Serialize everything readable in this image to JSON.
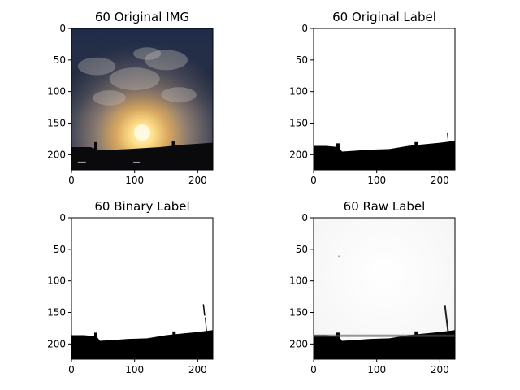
{
  "chart_data": [
    {
      "type": "image",
      "title": "60 Original IMG",
      "content": "photo",
      "xlim": [
        0,
        224
      ],
      "ylim": [
        224,
        0
      ],
      "xticks": [
        0,
        100,
        200
      ],
      "yticks": [
        0,
        50,
        100,
        150,
        200
      ]
    },
    {
      "type": "image",
      "title": "60 Original Label",
      "content": "mask",
      "xlim": [
        0,
        224
      ],
      "ylim": [
        224,
        0
      ],
      "xticks": [
        0,
        100,
        200
      ],
      "yticks": [
        0,
        50,
        100,
        150,
        200
      ],
      "skyline_y": [
        [
          0,
          186
        ],
        [
          20,
          186
        ],
        [
          40,
          188
        ],
        [
          45,
          195
        ],
        [
          60,
          194
        ],
        [
          90,
          192
        ],
        [
          120,
          191
        ],
        [
          150,
          186
        ],
        [
          170,
          184
        ],
        [
          200,
          181
        ],
        [
          224,
          178
        ]
      ]
    },
    {
      "type": "image",
      "title": "60 Binary Label",
      "content": "mask",
      "xlim": [
        0,
        224
      ],
      "ylim": [
        224,
        0
      ],
      "xticks": [
        0,
        100,
        200
      ],
      "yticks": [
        0,
        50,
        100,
        150,
        200
      ],
      "skyline_y": [
        [
          0,
          186
        ],
        [
          20,
          186
        ],
        [
          40,
          188
        ],
        [
          45,
          195
        ],
        [
          60,
          194
        ],
        [
          90,
          192
        ],
        [
          120,
          191
        ],
        [
          150,
          186
        ],
        [
          170,
          184
        ],
        [
          200,
          181
        ],
        [
          224,
          178
        ]
      ]
    },
    {
      "type": "image",
      "title": "60 Raw Label",
      "content": "mask",
      "xlim": [
        0,
        224
      ],
      "ylim": [
        224,
        0
      ],
      "xticks": [
        0,
        100,
        200
      ],
      "yticks": [
        0,
        50,
        100,
        150,
        200
      ],
      "skyline_y": [
        [
          0,
          186
        ],
        [
          20,
          186
        ],
        [
          40,
          188
        ],
        [
          45,
          195
        ],
        [
          60,
          194
        ],
        [
          90,
          192
        ],
        [
          120,
          191
        ],
        [
          150,
          186
        ],
        [
          170,
          184
        ],
        [
          200,
          181
        ],
        [
          224,
          178
        ]
      ]
    }
  ]
}
